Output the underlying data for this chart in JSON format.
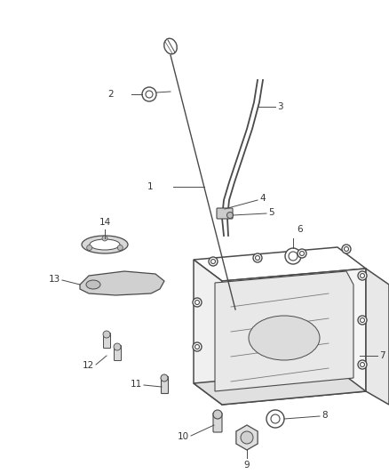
{
  "background_color": "#ffffff",
  "line_color": "#4a4a4a",
  "label_color": "#333333",
  "label_fontsize": 7.5,
  "fig_w": 4.38,
  "fig_h": 5.33,
  "dpi": 100
}
